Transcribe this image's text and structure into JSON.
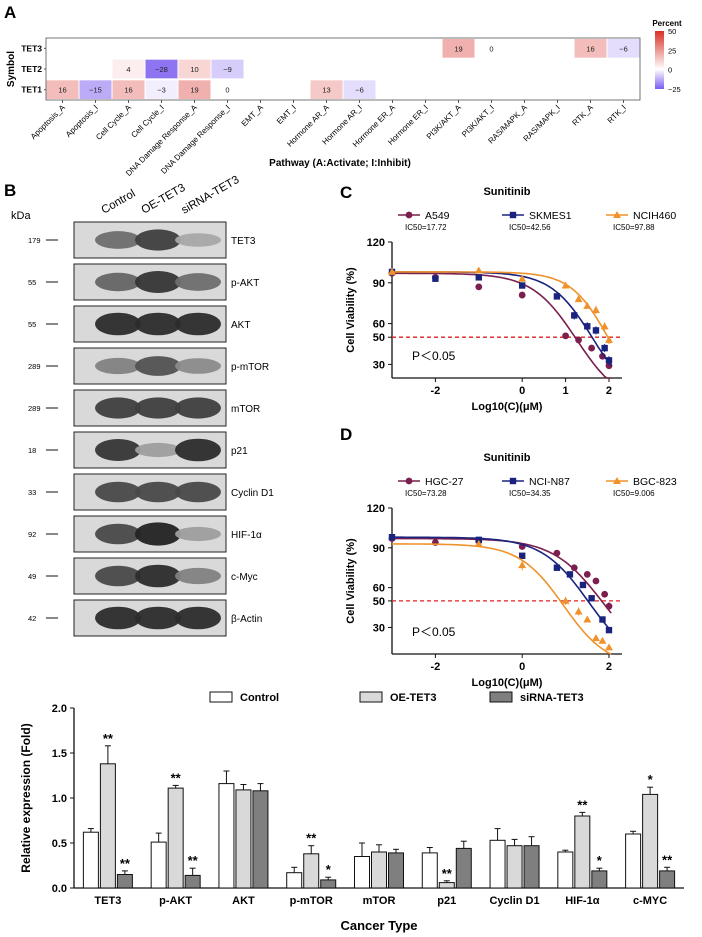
{
  "panel_labels": {
    "a": "A",
    "b": "B",
    "c": "C",
    "d": "D"
  },
  "heatmap": {
    "type": "heatmap",
    "rows": [
      "TET3",
      "TET2",
      "TET1"
    ],
    "columns": [
      "Apoptosis_A",
      "Apoptosis_I",
      "Cell Cycle_A",
      "Cell Cycle_I",
      "DNA Damage Response_A",
      "DNA Damage Response_I",
      "EMT_A",
      "EMT_I",
      "Hormone AR_A",
      "Hormone AR_I",
      "Hormone ER_A",
      "Hormone ER_I",
      "PI3K/AKT_A",
      "PI3K/AKT_I",
      "RAS/MAPK_A",
      "RAS/MAPK_I",
      "RTK_A",
      "RTK_I"
    ],
    "cells": [
      {
        "row": "TET3",
        "col": "PI3K/AKT_A",
        "value": 19
      },
      {
        "row": "TET3",
        "col": "PI3K/AKT_I",
        "value": 0
      },
      {
        "row": "TET3",
        "col": "RTK_A",
        "value": 16
      },
      {
        "row": "TET3",
        "col": "RTK_I",
        "value": -6
      },
      {
        "row": "TET2",
        "col": "Cell Cycle_A",
        "value": 4
      },
      {
        "row": "TET2",
        "col": "Cell Cycle_I",
        "value": -28
      },
      {
        "row": "TET2",
        "col": "DNA Damage Response_A",
        "value": 10
      },
      {
        "row": "TET2",
        "col": "DNA Damage Response_I",
        "value": -9
      },
      {
        "row": "TET1",
        "col": "Apoptosis_A",
        "value": 16
      },
      {
        "row": "TET1",
        "col": "Apoptosis_I",
        "value": -15
      },
      {
        "row": "TET1",
        "col": "Cell Cycle_A",
        "value": 16
      },
      {
        "row": "TET1",
        "col": "Cell Cycle_I",
        "value": -3
      },
      {
        "row": "TET1",
        "col": "DNA Damage Response_A",
        "value": 19
      },
      {
        "row": "TET1",
        "col": "DNA Damage Response_I",
        "value": 0
      },
      {
        "row": "TET1",
        "col": "Hormone AR_A",
        "value": 13
      },
      {
        "row": "TET1",
        "col": "Hormone AR_I",
        "value": -6
      }
    ],
    "ylabel": "Symbol",
    "xlabel": "Pathway (A:Activate; I:Inhibit)",
    "legend_title": "Percent",
    "legend_ticks": [
      50,
      25,
      0,
      -25
    ],
    "colors": {
      "pos": "#d73027",
      "neg": "#7b5cf0",
      "mid": "#ffffff"
    }
  },
  "western_blot": {
    "kda_label": "kDa",
    "lanes": [
      "Control",
      "OE-TET3",
      "siRNA-TET3"
    ],
    "bands": [
      {
        "kda": "179",
        "protein": "TET3",
        "intensity": [
          0.55,
          0.8,
          0.25
        ]
      },
      {
        "kda": "55",
        "protein": "p-AKT",
        "intensity": [
          0.6,
          0.85,
          0.55
        ]
      },
      {
        "kda": "55",
        "protein": "AKT",
        "intensity": [
          0.9,
          0.9,
          0.9
        ]
      },
      {
        "kda": "289",
        "protein": "p-mTOR",
        "intensity": [
          0.45,
          0.7,
          0.4
        ]
      },
      {
        "kda": "289",
        "protein": "mTOR",
        "intensity": [
          0.8,
          0.8,
          0.8
        ]
      },
      {
        "kda": "18",
        "protein": "p21",
        "intensity": [
          0.85,
          0.3,
          0.9
        ]
      },
      {
        "kda": "33",
        "protein": "Cyclin D1",
        "intensity": [
          0.75,
          0.75,
          0.75
        ]
      },
      {
        "kda": "92",
        "protein": "HIF-1α",
        "intensity": [
          0.75,
          0.95,
          0.3
        ]
      },
      {
        "kda": "49",
        "protein": "c-Myc",
        "intensity": [
          0.75,
          0.9,
          0.45
        ]
      },
      {
        "kda": "42",
        "protein": "β-Actin",
        "intensity": [
          0.9,
          0.9,
          0.9
        ]
      }
    ]
  },
  "chart_data": [
    {
      "type": "scatter",
      "title": "Sunitinib",
      "xlabel": "Log10(C)(μM)",
      "ylabel": "Cell Viability (%)",
      "xlim": [
        -3,
        2.3
      ],
      "ylim": [
        20,
        120
      ],
      "xticks": [
        -2,
        0,
        1,
        2
      ],
      "xtick_labels": [
        "-2",
        "0",
        "1",
        "2"
      ],
      "yticks": [
        30,
        50,
        60,
        90,
        120
      ],
      "reference_line": 50,
      "annotation": "P＜0.05",
      "series": [
        {
          "name": "A549",
          "ic50": "IC50=17.72",
          "color": "#7a1f4e",
          "marker": "circle",
          "logic50": 1.249,
          "hill": 0.85,
          "points": [
            {
              "x": -3,
              "y": 97,
              "err": 1.5
            },
            {
              "x": -2,
              "y": 94,
              "err": 1.5
            },
            {
              "x": -1,
              "y": 87,
              "err": 2
            },
            {
              "x": 0,
              "y": 81,
              "err": 2
            },
            {
              "x": 1,
              "y": 51,
              "err": 2
            },
            {
              "x": 1.3,
              "y": 48,
              "err": 2
            },
            {
              "x": 1.6,
              "y": 42,
              "err": 2
            },
            {
              "x": 1.85,
              "y": 36,
              "err": 2
            },
            {
              "x": 2,
              "y": 29,
              "err": 2
            }
          ]
        },
        {
          "name": "SKMES1",
          "ic50": "IC50=42.56",
          "color": "#1a237e",
          "marker": "square",
          "logic50": 1.629,
          "hill": 0.9,
          "points": [
            {
              "x": -3,
              "y": 98,
              "err": 1.5
            },
            {
              "x": -2,
              "y": 93,
              "err": 1.5
            },
            {
              "x": -1,
              "y": 94,
              "err": 1.5
            },
            {
              "x": 0,
              "y": 88,
              "err": 2
            },
            {
              "x": 0.8,
              "y": 80,
              "err": 2
            },
            {
              "x": 1.2,
              "y": 66,
              "err": 3
            },
            {
              "x": 1.5,
              "y": 58,
              "err": 3
            },
            {
              "x": 1.7,
              "y": 55,
              "err": 3
            },
            {
              "x": 1.9,
              "y": 42,
              "err": 3
            },
            {
              "x": 2,
              "y": 33,
              "err": 3
            }
          ]
        },
        {
          "name": "NCIH460",
          "ic50": "IC50=97.88",
          "color": "#f0922b",
          "marker": "triangle",
          "logic50": 1.991,
          "hill": 1.0,
          "points": [
            {
              "x": -3,
              "y": 98,
              "err": 1.5
            },
            {
              "x": -1,
              "y": 99,
              "err": 1.5
            },
            {
              "x": 0,
              "y": 93,
              "err": 1.5
            },
            {
              "x": 1,
              "y": 88,
              "err": 2
            },
            {
              "x": 1.3,
              "y": 78,
              "err": 2
            },
            {
              "x": 1.5,
              "y": 73,
              "err": 2
            },
            {
              "x": 1.7,
              "y": 70,
              "err": 3
            },
            {
              "x": 1.9,
              "y": 58,
              "err": 3
            },
            {
              "x": 2,
              "y": 48,
              "err": 3
            }
          ]
        }
      ]
    },
    {
      "type": "scatter",
      "title": "Sunitinib",
      "xlabel": "Log10(C)(μM)",
      "ylabel": "Cell Viability (%)",
      "xlim": [
        -3,
        2.3
      ],
      "ylim": [
        10,
        120
      ],
      "xticks": [
        -2,
        0,
        2
      ],
      "xtick_labels": [
        "-2",
        "0",
        "2"
      ],
      "yticks": [
        30,
        50,
        60,
        90,
        120
      ],
      "reference_line": 50,
      "annotation": "P＜0.05",
      "series": [
        {
          "name": "HGC-27",
          "ic50": "IC50=73.28",
          "color": "#7a1f4e",
          "marker": "circle",
          "logic50": 1.865,
          "hill": 0.75,
          "points": [
            {
              "x": -3,
              "y": 97,
              "err": 1.5
            },
            {
              "x": -2,
              "y": 94,
              "err": 1.5
            },
            {
              "x": -1,
              "y": 95,
              "err": 1.5
            },
            {
              "x": 0,
              "y": 91,
              "err": 2
            },
            {
              "x": 0.8,
              "y": 86,
              "err": 2
            },
            {
              "x": 1.2,
              "y": 75,
              "err": 2
            },
            {
              "x": 1.5,
              "y": 70,
              "err": 2
            },
            {
              "x": 1.7,
              "y": 65,
              "err": 2
            },
            {
              "x": 1.9,
              "y": 55,
              "err": 2
            },
            {
              "x": 2,
              "y": 46,
              "err": 3
            }
          ]
        },
        {
          "name": "NCI-N87",
          "ic50": "IC50=34.35",
          "color": "#1a237e",
          "marker": "square",
          "logic50": 1.536,
          "hill": 0.8,
          "points": [
            {
              "x": -3,
              "y": 98,
              "err": 1.5
            },
            {
              "x": -1,
              "y": 96,
              "err": 1.5
            },
            {
              "x": 0,
              "y": 84,
              "err": 2
            },
            {
              "x": 0.8,
              "y": 75,
              "err": 2
            },
            {
              "x": 1.1,
              "y": 70,
              "err": 2
            },
            {
              "x": 1.4,
              "y": 62,
              "err": 2
            },
            {
              "x": 1.6,
              "y": 52,
              "err": 2
            },
            {
              "x": 1.85,
              "y": 36,
              "err": 2
            },
            {
              "x": 2,
              "y": 28,
              "err": 2
            }
          ]
        },
        {
          "name": "BGC-823",
          "ic50": "IC50=9.006",
          "color": "#f0922b",
          "marker": "triangle",
          "logic50": 0.955,
          "hill": 0.85,
          "points": [
            {
              "x": -1,
              "y": 93,
              "err": 2
            },
            {
              "x": 0,
              "y": 77,
              "err": 4
            },
            {
              "x": 1,
              "y": 50,
              "err": 3
            },
            {
              "x": 1.3,
              "y": 42,
              "err": 3
            },
            {
              "x": 1.5,
              "y": 36,
              "err": 2
            },
            {
              "x": 1.7,
              "y": 22,
              "err": 2
            },
            {
              "x": 1.85,
              "y": 20,
              "err": 2
            },
            {
              "x": 2,
              "y": 15,
              "err": 2
            }
          ]
        }
      ]
    },
    {
      "type": "bar",
      "ylabel": "Relative expression (Fold)",
      "xlabel": "Cancer Type",
      "ylim": [
        0,
        2.0
      ],
      "yticks": [
        0.0,
        0.5,
        1.0,
        1.5,
        2.0
      ],
      "ytick_labels": [
        "0.0",
        "0.5",
        "1.0",
        "1.5",
        "2.0"
      ],
      "categories": [
        "TET3",
        "p-AKT",
        "AKT",
        "p-mTOR",
        "mTOR",
        "p21",
        "Cyclin D1",
        "HIF-1α",
        "c-MYC"
      ],
      "series": [
        {
          "name": "Control",
          "color": "#ffffff",
          "values": [
            0.62,
            0.51,
            1.16,
            0.17,
            0.35,
            0.39,
            0.53,
            0.4,
            0.6
          ],
          "errors": [
            0.04,
            0.1,
            0.14,
            0.06,
            0.15,
            0.06,
            0.13,
            0.02,
            0.03
          ],
          "sig": [
            "",
            "",
            "",
            "",
            "",
            "",
            "",
            "",
            ""
          ]
        },
        {
          "name": "OE-TET3",
          "color": "#d9d9d9",
          "values": [
            1.38,
            1.11,
            1.09,
            0.38,
            0.4,
            0.06,
            0.47,
            0.8,
            1.04
          ],
          "errors": [
            0.2,
            0.03,
            0.06,
            0.09,
            0.08,
            0.02,
            0.07,
            0.04,
            0.08
          ],
          "sig": [
            "**",
            "**",
            "",
            "**",
            "",
            "**",
            "",
            "**",
            "*"
          ]
        },
        {
          "name": "siRNA-TET3",
          "color": "#7f7f7f",
          "values": [
            0.15,
            0.14,
            1.08,
            0.09,
            0.39,
            0.44,
            0.47,
            0.19,
            0.19
          ],
          "errors": [
            0.04,
            0.08,
            0.08,
            0.03,
            0.04,
            0.08,
            0.1,
            0.03,
            0.04
          ],
          "sig": [
            "**",
            "**",
            "",
            "*",
            "",
            "",
            "",
            "*",
            "**"
          ]
        }
      ]
    }
  ]
}
